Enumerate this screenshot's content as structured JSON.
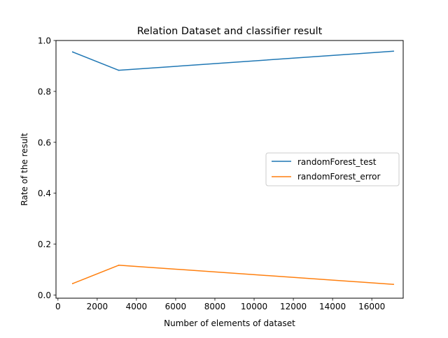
{
  "chart_data": {
    "type": "line",
    "title": "Relation Dataset and classifier result",
    "xlabel": "Number of elements of dataset",
    "ylabel": "Rate of the result",
    "xlim": [
      -100,
      17600
    ],
    "ylim": [
      -0.0125,
      1.0
    ],
    "xticks": [
      0,
      2000,
      4000,
      6000,
      8000,
      10000,
      12000,
      14000,
      16000
    ],
    "xtick_labels": [
      "0",
      "2000",
      "4000",
      "6000",
      "8000",
      "10000",
      "12000",
      "14000",
      "16000"
    ],
    "yticks": [
      0.0,
      0.2,
      0.4,
      0.6,
      0.8,
      1.0
    ],
    "ytick_labels": [
      "0.0",
      "0.2",
      "0.4",
      "0.6",
      "0.8",
      "1.0"
    ],
    "grid": false,
    "legend_position": "center-right",
    "series": [
      {
        "name": "randomForest_test",
        "color": "#1f77b4",
        "x": [
          750,
          3100,
          17100
        ],
        "y": [
          0.955,
          0.883,
          0.958
        ]
      },
      {
        "name": "randomForest_error",
        "color": "#ff7f0e",
        "x": [
          750,
          3100,
          17100
        ],
        "y": [
          0.045,
          0.117,
          0.042
        ]
      }
    ]
  }
}
